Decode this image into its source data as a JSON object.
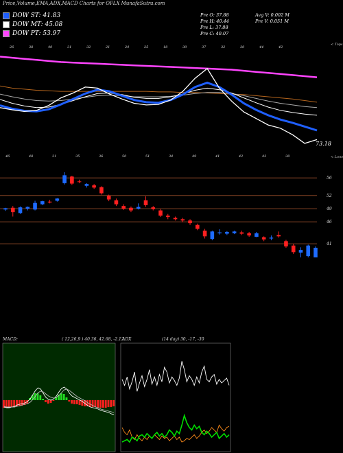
{
  "header": {
    "title": "Price,Volume,EMA,ADX,MACD Charts for OFLX  MunafaSutra.com"
  },
  "legend": [
    {
      "label": "DOW ST: 41.83",
      "color": "#1f5fff"
    },
    {
      "label": "DOW MT: 45.08",
      "color": "#ffffff"
    },
    {
      "label": "DOW PT: 53.97",
      "color": "#ff44ff"
    }
  ],
  "stats": {
    "prev_open": "Pre   O: 37.88",
    "prev_high": "Pre   H: 40.44",
    "prev_low": "Pre   L: 37.88",
    "prev_close": "Pre   C: 40.07",
    "avg_volume": "Avg V: 0.002  M",
    "prev_volume": "Pre   V: 0.051 M"
  },
  "chart_data": [
    {
      "type": "line",
      "name": "price-ema-panel",
      "corner_labels": {
        "top_right": "< Tops",
        "bottom_right": "< Lows"
      },
      "last_value_label": "73.18",
      "top_date_labels": [
        "26",
        "38",
        "40",
        "31",
        "32",
        "21",
        "24",
        "25",
        "18",
        "30",
        "37",
        "32",
        "30",
        "44",
        "42"
      ],
      "bottom_date_labels": [
        "46",
        "48",
        "31",
        "35",
        "36",
        "50",
        "51",
        "34",
        "49",
        "41",
        "42",
        "43",
        "38"
      ],
      "series": [
        {
          "name": "DOW PT",
          "color": "#ff44ff",
          "values": [
            55.4,
            55.2,
            55.0,
            54.8,
            54.6,
            54.4,
            54.3,
            54.2,
            54.1,
            54.0,
            53.9,
            53.8,
            53.7,
            53.6,
            53.5,
            53.4,
            53.3,
            53.2,
            53.1,
            53.0,
            52.8,
            52.6,
            52.4,
            52.2,
            52.0,
            51.8,
            51.6
          ]
        },
        {
          "name": "",
          "color": "#b5651d",
          "values": [
            50.0,
            49.6,
            49.4,
            49.2,
            49.1,
            49.0,
            49.0,
            49.0,
            49.0,
            49.0,
            49.0,
            49.0,
            49.0,
            48.9,
            48.9,
            48.8,
            48.8,
            48.7,
            48.6,
            48.5,
            48.4,
            48.2,
            48.0,
            47.8,
            47.6,
            47.3,
            47.0
          ]
        },
        {
          "name": "",
          "color": "#aaaaaa",
          "values": [
            48.5,
            48.0,
            47.6,
            47.3,
            47.2,
            47.3,
            47.6,
            47.9,
            48.2,
            48.3,
            48.2,
            48.0,
            48.0,
            48.0,
            48.1,
            48.3,
            48.6,
            48.8,
            48.8,
            48.6,
            48.2,
            47.7,
            47.2,
            46.8,
            46.5,
            46.2,
            46.0
          ]
        },
        {
          "name": "DOW MT",
          "color": "#ffffff",
          "values": [
            47.5,
            46.8,
            46.3,
            46.0,
            46.1,
            46.6,
            47.3,
            48.0,
            48.6,
            48.7,
            48.4,
            47.9,
            47.7,
            47.7,
            48.0,
            48.5,
            49.2,
            49.6,
            49.3,
            48.7,
            47.8,
            46.9,
            46.1,
            45.5,
            45.1,
            44.8,
            44.6
          ]
        },
        {
          "name": "DOW ST",
          "color": "#1f5fff",
          "values": [
            46.4,
            45.8,
            45.4,
            45.3,
            45.7,
            46.6,
            47.6,
            48.6,
            49.3,
            49.0,
            48.2,
            47.4,
            47.0,
            46.9,
            47.4,
            48.4,
            49.8,
            50.6,
            49.8,
            48.4,
            46.8,
            45.6,
            44.6,
            43.8,
            43.2,
            42.5,
            41.8
          ]
        },
        {
          "name": "Close",
          "color": "#ffffff",
          "values": [
            46.0,
            45.6,
            45.3,
            45.5,
            46.4,
            47.8,
            48.7,
            49.8,
            49.6,
            48.5,
            47.6,
            46.8,
            46.5,
            46.6,
            47.4,
            49.0,
            51.4,
            53.2,
            49.6,
            47.2,
            45.2,
            44.0,
            42.8,
            42.2,
            41.0,
            39.4,
            40.1
          ]
        }
      ],
      "ylim": [
        38,
        58
      ]
    },
    {
      "type": "candlestick",
      "name": "price-candles",
      "price_labels": [
        "56",
        "52",
        "49",
        "46",
        "41"
      ],
      "price_levels": [
        56,
        52,
        49,
        46,
        41
      ],
      "ylim": [
        34,
        59
      ],
      "candles": [
        {
          "o": 48.8,
          "h": 49.2,
          "l": 48.5,
          "c": 49.1
        },
        {
          "o": 49.2,
          "h": 49.6,
          "l": 47.2,
          "c": 48.2
        },
        {
          "o": 48.0,
          "h": 49.5,
          "l": 47.8,
          "c": 49.3
        },
        {
          "o": 49.0,
          "h": 49.5,
          "l": 48.6,
          "c": 49.4
        },
        {
          "o": 48.8,
          "h": 50.8,
          "l": 48.6,
          "c": 50.3
        },
        {
          "o": 50.0,
          "h": 50.8,
          "l": 49.8,
          "c": 50.7
        },
        {
          "o": 50.6,
          "h": 51.0,
          "l": 50.2,
          "c": 50.4
        },
        {
          "o": 50.8,
          "h": 51.4,
          "l": 50.6,
          "c": 51.3
        },
        {
          "o": 54.8,
          "h": 57.3,
          "l": 54.5,
          "c": 56.6
        },
        {
          "o": 56.3,
          "h": 56.5,
          "l": 54.4,
          "c": 54.7
        },
        {
          "o": 55.2,
          "h": 55.6,
          "l": 54.8,
          "c": 55.1
        },
        {
          "o": 54.2,
          "h": 54.8,
          "l": 53.8,
          "c": 54.6
        },
        {
          "o": 54.3,
          "h": 54.6,
          "l": 53.5,
          "c": 53.8
        },
        {
          "o": 53.9,
          "h": 54.1,
          "l": 52.2,
          "c": 52.5
        },
        {
          "o": 51.9,
          "h": 52.2,
          "l": 50.7,
          "c": 51.1
        },
        {
          "o": 50.9,
          "h": 51.3,
          "l": 49.6,
          "c": 50.0
        },
        {
          "o": 49.6,
          "h": 50.0,
          "l": 48.7,
          "c": 49.0
        },
        {
          "o": 49.2,
          "h": 49.5,
          "l": 48.2,
          "c": 48.6
        },
        {
          "o": 49.0,
          "h": 50.2,
          "l": 48.8,
          "c": 49.4
        },
        {
          "o": 50.9,
          "h": 51.8,
          "l": 49.4,
          "c": 49.8
        },
        {
          "o": 49.3,
          "h": 49.6,
          "l": 48.6,
          "c": 48.9
        },
        {
          "o": 48.6,
          "h": 48.9,
          "l": 47.1,
          "c": 47.4
        },
        {
          "o": 47.4,
          "h": 47.8,
          "l": 46.6,
          "c": 47.1
        },
        {
          "o": 46.9,
          "h": 47.2,
          "l": 46.3,
          "c": 46.6
        },
        {
          "o": 46.6,
          "h": 46.9,
          "l": 45.9,
          "c": 46.3
        },
        {
          "o": 46.3,
          "h": 46.6,
          "l": 45.3,
          "c": 45.7
        },
        {
          "o": 45.3,
          "h": 45.6,
          "l": 44.1,
          "c": 44.4
        },
        {
          "o": 44.0,
          "h": 44.4,
          "l": 42.2,
          "c": 42.7
        },
        {
          "o": 42.1,
          "h": 44.0,
          "l": 41.8,
          "c": 43.8
        },
        {
          "o": 43.4,
          "h": 44.3,
          "l": 43.1,
          "c": 43.6
        },
        {
          "o": 43.3,
          "h": 43.9,
          "l": 43.0,
          "c": 43.7
        },
        {
          "o": 43.4,
          "h": 44.0,
          "l": 43.2,
          "c": 43.8
        },
        {
          "o": 43.6,
          "h": 44.0,
          "l": 43.0,
          "c": 43.3
        },
        {
          "o": 43.4,
          "h": 43.7,
          "l": 42.6,
          "c": 42.9
        },
        {
          "o": 42.6,
          "h": 43.7,
          "l": 42.5,
          "c": 43.4
        },
        {
          "o": 42.5,
          "h": 42.7,
          "l": 41.6,
          "c": 42.0
        },
        {
          "o": 42.2,
          "h": 42.9,
          "l": 41.8,
          "c": 42.4
        },
        {
          "o": 43.0,
          "h": 43.8,
          "l": 42.4,
          "c": 42.7
        },
        {
          "o": 41.6,
          "h": 41.9,
          "l": 40.1,
          "c": 40.4
        },
        {
          "o": 40.6,
          "h": 41.0,
          "l": 38.7,
          "c": 39.1
        },
        {
          "o": 39.0,
          "h": 40.2,
          "l": 37.9,
          "c": 39.6
        },
        {
          "o": 38.2,
          "h": 40.8,
          "l": 37.9,
          "c": 40.6
        },
        {
          "o": 37.9,
          "h": 40.4,
          "l": 37.9,
          "c": 40.1
        }
      ]
    },
    {
      "type": "macd",
      "name": "macd-panel",
      "title": "MACD:",
      "params": "( 12,26,9 ) 40.36, 42.68, -2.12",
      "macd": [
        -1.0,
        -1.1,
        -1.1,
        -1.0,
        -0.9,
        -0.7,
        -0.6,
        -0.5,
        -0.4,
        -0.2,
        0.2,
        0.8,
        1.4,
        1.8,
        1.6,
        1.0,
        0.4,
        0.1,
        0.0,
        0.2,
        0.6,
        1.2,
        1.7,
        1.9,
        1.6,
        1.0,
        0.6,
        0.4,
        0.2,
        0.0,
        -0.2,
        -0.5,
        -0.8,
        -1.0,
        -1.1,
        -1.2,
        -1.3,
        -1.5,
        -1.6,
        -1.7,
        -1.8,
        -2.0,
        -2.1
      ],
      "signal": [
        -0.9,
        -1.0,
        -1.0,
        -1.0,
        -1.0,
        -0.9,
        -0.8,
        -0.7,
        -0.6,
        -0.5,
        -0.3,
        0.1,
        0.6,
        1.1,
        1.3,
        1.2,
        0.9,
        0.6,
        0.4,
        0.3,
        0.4,
        0.7,
        1.1,
        1.5,
        1.6,
        1.4,
        1.1,
        0.8,
        0.5,
        0.3,
        0.1,
        -0.1,
        -0.4,
        -0.6,
        -0.8,
        -1.0,
        -1.1,
        -1.3,
        -1.4,
        -1.5,
        -1.6,
        -1.7,
        -1.8
      ],
      "hist": [
        -1.1,
        -1.1,
        -1.0,
        -1.0,
        -1.0,
        -0.9,
        -0.9,
        -0.8,
        -0.7,
        -0.5,
        0.3,
        0.7,
        1.0,
        1.0,
        0.7,
        0.2,
        -0.3,
        -0.5,
        -0.4,
        -0.1,
        0.4,
        0.8,
        1.0,
        0.9,
        0.4,
        -0.2,
        -0.5,
        -0.6,
        -0.6,
        -0.7,
        -0.8,
        -0.9,
        -0.9,
        -1.0,
        -1.0,
        -1.0,
        -1.1,
        -1.1,
        -1.1,
        -1.1,
        -1.0,
        -1.0,
        -0.9
      ],
      "ylim": [
        -4,
        4
      ]
    },
    {
      "type": "line",
      "name": "adx-panel",
      "title": "ADX",
      "params": "(14 day) 30, -17, -30",
      "series": [
        {
          "name": "ADX",
          "color": "#ffffff",
          "values": [
            60,
            55,
            62,
            52,
            58,
            66,
            50,
            57,
            63,
            54,
            60,
            68,
            56,
            62,
            55,
            64,
            58,
            70,
            66,
            57,
            62,
            59,
            55,
            61,
            75,
            68,
            58,
            63,
            60,
            55,
            62,
            57,
            66,
            71,
            60,
            58,
            62,
            64,
            56,
            60,
            57,
            59,
            61,
            55
          ]
        },
        {
          "name": "+DI",
          "color": "#ff8c1a",
          "values": [
            20,
            16,
            14,
            18,
            12,
            10,
            14,
            11,
            9,
            12,
            10,
            13,
            11,
            14,
            12,
            10,
            13,
            11,
            12,
            9,
            11,
            13,
            10,
            12,
            8,
            9,
            11,
            10,
            12,
            14,
            11,
            13,
            16,
            18,
            15,
            17,
            20,
            18,
            16,
            22,
            19,
            17,
            20,
            21
          ]
        },
        {
          "name": "-DI",
          "color": "#00dd00",
          "values": [
            8,
            9,
            10,
            8,
            12,
            11,
            9,
            13,
            14,
            12,
            15,
            13,
            11,
            14,
            16,
            13,
            15,
            12,
            14,
            18,
            16,
            13,
            17,
            15,
            22,
            30,
            24,
            20,
            18,
            22,
            19,
            21,
            16,
            14,
            17,
            15,
            12,
            14,
            16,
            11,
            13,
            15,
            12,
            14
          ]
        }
      ],
      "ylim": [
        0,
        90
      ]
    }
  ]
}
